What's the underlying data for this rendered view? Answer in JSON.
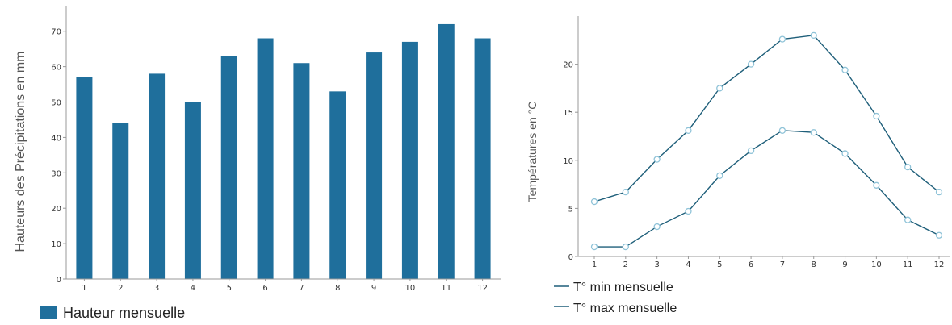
{
  "chart_data": [
    {
      "type": "bar",
      "categories": [
        "1",
        "2",
        "3",
        "4",
        "5",
        "6",
        "7",
        "8",
        "9",
        "10",
        "11",
        "12"
      ],
      "series": [
        {
          "name": "Hauteur mensuelle",
          "values": [
            57,
            44,
            58,
            50,
            63,
            68,
            61,
            53,
            64,
            67,
            72,
            68
          ]
        }
      ],
      "ylabel": "Hauteurs des Précipitations en mm",
      "xlabel": "",
      "yticks": [
        "0",
        "10",
        "20",
        "30",
        "40",
        "50",
        "60",
        "70"
      ],
      "ylim": [
        0,
        77
      ],
      "grid": false,
      "legend": "bottom-left",
      "color": "#1f6f9c"
    },
    {
      "type": "line",
      "x": [
        "1",
        "2",
        "3",
        "4",
        "5",
        "6",
        "7",
        "8",
        "9",
        "10",
        "11",
        "12"
      ],
      "series": [
        {
          "name": "T° min mensuelle",
          "values": [
            1.0,
            1.0,
            3.1,
            4.7,
            8.4,
            11.0,
            13.1,
            12.9,
            10.7,
            7.4,
            3.8,
            2.2
          ]
        },
        {
          "name": "T° max mensuelle",
          "values": [
            5.7,
            6.7,
            10.1,
            13.1,
            17.5,
            20.0,
            22.6,
            23.0,
            19.4,
            14.6,
            9.3,
            6.7
          ]
        }
      ],
      "ylabel": "Températures en °C",
      "xlabel": "",
      "yticks": [
        "0",
        "5",
        "10",
        "15",
        "20"
      ],
      "ylim": [
        0,
        25
      ],
      "grid": false,
      "legend": "bottom-left",
      "line_color": "#1f5f7a",
      "marker_color": "#8fc3d8"
    }
  ]
}
